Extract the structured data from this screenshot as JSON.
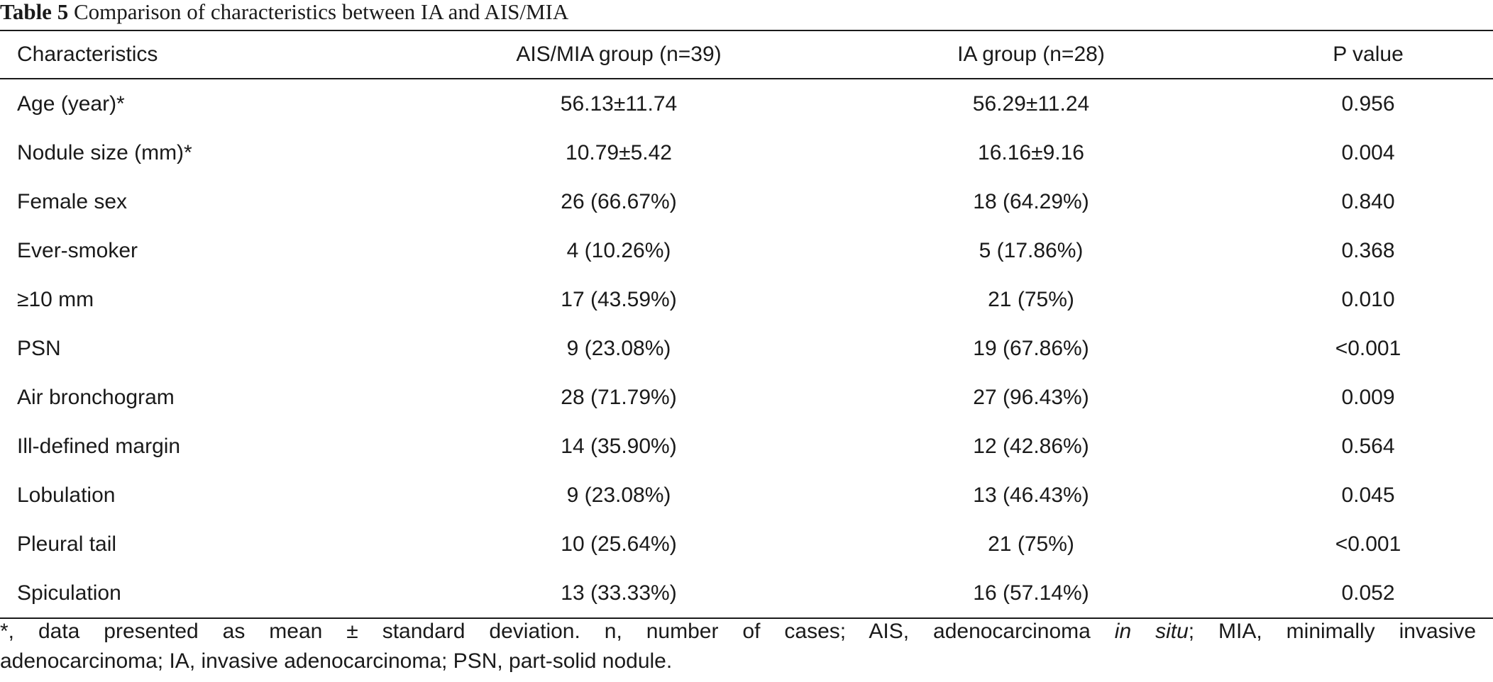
{
  "caption": {
    "label": "Table 5",
    "text": "Comparison of characteristics between IA and AIS/MIA"
  },
  "table": {
    "headers": [
      "Characteristics",
      "AIS/MIA group (n=39)",
      "IA group (n=28)",
      "P value"
    ],
    "rows": [
      [
        "Age (year)*",
        "56.13±11.74",
        "56.29±11.24",
        "0.956"
      ],
      [
        "Nodule size (mm)*",
        "10.79±5.42",
        "16.16±9.16",
        "0.004"
      ],
      [
        "Female sex",
        "26 (66.67%)",
        "18 (64.29%)",
        "0.840"
      ],
      [
        "Ever-smoker",
        "4 (10.26%)",
        "5 (17.86%)",
        "0.368"
      ],
      [
        "≥10 mm",
        "17 (43.59%)",
        "21 (75%)",
        "0.010"
      ],
      [
        "PSN",
        "9 (23.08%)",
        "19 (67.86%)",
        "<0.001"
      ],
      [
        "Air bronchogram",
        "28 (71.79%)",
        "27 (96.43%)",
        "0.009"
      ],
      [
        "Ill-defined margin",
        "14 (35.90%)",
        "12 (42.86%)",
        "0.564"
      ],
      [
        "Lobulation",
        "9 (23.08%)",
        "13 (46.43%)",
        "0.045"
      ],
      [
        "Pleural tail",
        "10 (25.64%)",
        "21 (75%)",
        "<0.001"
      ],
      [
        "Spiculation",
        "13 (33.33%)",
        "16 (57.14%)",
        "0.052"
      ]
    ]
  },
  "footnote": {
    "part1": "*, data presented as mean ± standard deviation. n, number of cases; AIS, adenocarcinoma ",
    "italic": "in situ",
    "part2": "; MIA, minimally invasive",
    "part3": "adenocarcinoma; IA, invasive adenocarcinoma; PSN, part-solid nodule."
  }
}
